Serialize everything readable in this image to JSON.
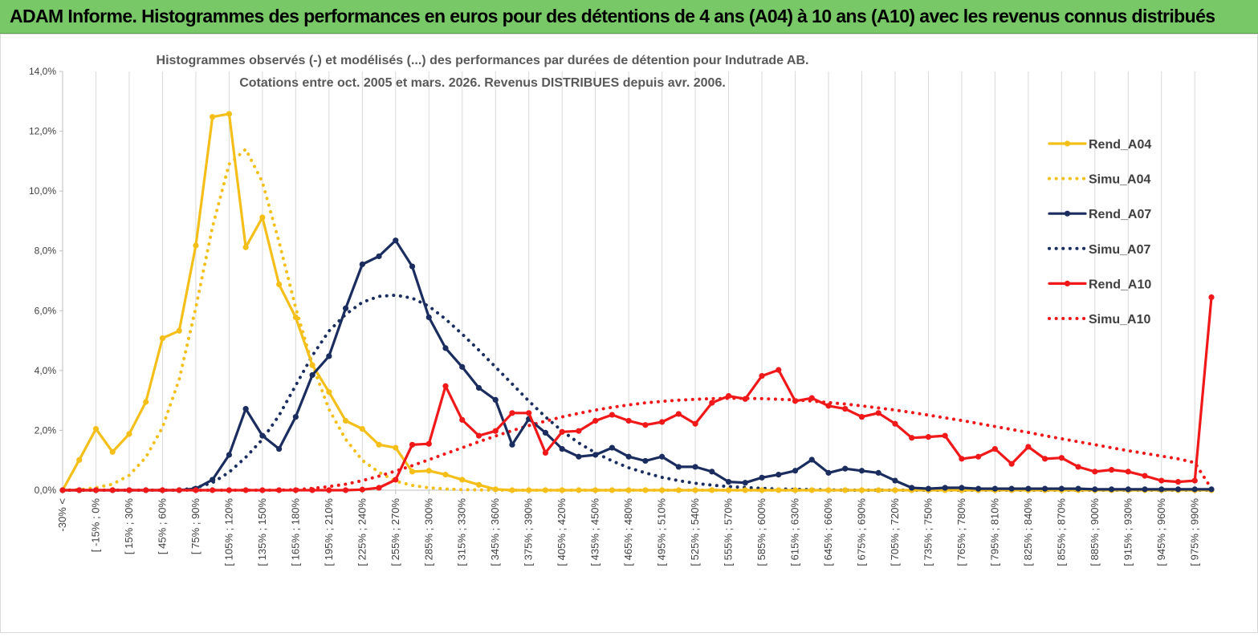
{
  "banner": {
    "title": "ADAM Informe. Histogrammes des performances en euros pour des détentions de 4 ans (A04) à 10 ans (A10) avec les revenus connus distribués",
    "color": "#78c868"
  },
  "chart_data": {
    "type": "line",
    "title_line1": "Histogrammes observés (-) et modélisés (...) des performances par durées de détention pour Indutrade AB.",
    "title_line2": "Cotations entre oct. 2005 et mars. 2026. Revenus DISTRIBUES depuis avr. 2006.",
    "xlabel": "",
    "ylabel": "",
    "ylim": [
      0,
      0.14
    ],
    "y_ticks": [
      0,
      0.02,
      0.04,
      0.06,
      0.08,
      0.1,
      0.12,
      0.14
    ],
    "y_tick_labels": [
      "0,0%",
      "2,0%",
      "4,0%",
      "6,0%",
      "8,0%",
      "10,0%",
      "12,0%",
      "14,0%"
    ],
    "grid": "vertical",
    "legend_position": "right",
    "x_labels": [
      "-30% <",
      "[ -15% ; 0%",
      "[ 15% ; 30%",
      "[ 45% ; 60%",
      "[ 75% ; 90%",
      "[ 105% ; 120%",
      "[ 135% ; 150%",
      "[ 165% ; 180%",
      "[ 195% ; 210%",
      "[ 225% ; 240%",
      "[ 255% ; 270%",
      "[ 285% ; 300%",
      "[ 315% ; 330%",
      "[ 345% ; 360%",
      "[ 375% ; 390%",
      "[ 405% ; 420%",
      "[ 435% ; 450%",
      "[ 465% ; 480%",
      "[ 495% ; 510%",
      "[ 525% ; 540%",
      "[ 555% ; 570%",
      "[ 585% ; 600%",
      "[ 615% ; 630%",
      "[ 645% ; 660%",
      "[ 675% ; 690%",
      "[ 705% ; 720%",
      "[ 735% ; 750%",
      "[ 765% ; 780%",
      "[ 795% ; 810%",
      "[ 825% ; 840%",
      "[ 855% ; 870%",
      "[ 885% ; 900%",
      "[ 915% ; 930%",
      "[ 945% ; 960%",
      "[ 975% ; 990%"
    ],
    "series": [
      {
        "name": "Rend_A04",
        "color": "#f5bf1a",
        "style": "solid",
        "markers": true,
        "values": [
          0,
          0.0101,
          0.0205,
          0.0128,
          0.0188,
          0.0295,
          0.0508,
          0.0533,
          0.0818,
          0.1248,
          0.1258,
          0.0812,
          0.0912,
          0.0688,
          0.0578,
          0.0418,
          0.0328,
          0.0232,
          0.0205,
          0.0152,
          0.0142,
          0.0062,
          0.0065,
          0.0052,
          0.0035,
          0.0018,
          0.0003,
          0,
          0,
          0,
          0,
          0,
          0,
          0,
          0,
          0,
          0,
          0,
          0,
          0,
          0,
          0,
          0,
          0,
          0,
          0,
          0,
          0,
          0,
          0,
          0,
          0,
          0,
          0,
          0,
          0,
          0,
          0,
          0,
          0,
          0,
          0,
          0,
          0,
          0,
          0,
          0,
          0,
          0,
          0
        ]
      },
      {
        "name": "Simu_A04",
        "color": "#f5bf1a",
        "style": "dotted",
        "markers": false,
        "values": [
          0,
          0.0002,
          0.0008,
          0.002,
          0.005,
          0.011,
          0.021,
          0.037,
          0.061,
          0.088,
          0.109,
          0.114,
          0.103,
          0.083,
          0.061,
          0.042,
          0.027,
          0.017,
          0.01,
          0.006,
          0.003,
          0.0016,
          0.0008,
          0.0004,
          0.0002,
          0.0001,
          0,
          0,
          0,
          0,
          0,
          0,
          0,
          0,
          0,
          0,
          0,
          0,
          0,
          0,
          0,
          0,
          0,
          0,
          0,
          0,
          0,
          0,
          0,
          0,
          0,
          0,
          0,
          0,
          0,
          0,
          0,
          0,
          0,
          0,
          0,
          0,
          0,
          0,
          0,
          0,
          0,
          0,
          0,
          0
        ]
      },
      {
        "name": "Rend_A07",
        "color": "#1a2d5e",
        "style": "solid",
        "markers": true,
        "values": [
          0,
          0,
          0,
          0,
          0,
          0,
          0,
          0,
          0.0005,
          0.0035,
          0.0118,
          0.0272,
          0.0182,
          0.0138,
          0.0245,
          0.0385,
          0.0448,
          0.0608,
          0.0755,
          0.0782,
          0.0835,
          0.0748,
          0.0578,
          0.0475,
          0.0412,
          0.0342,
          0.0302,
          0.0152,
          0.0238,
          0.0192,
          0.0138,
          0.0112,
          0.0118,
          0.0142,
          0.0112,
          0.0098,
          0.0112,
          0.0078,
          0.0078,
          0.0062,
          0.0028,
          0.0025,
          0.0042,
          0.0052,
          0.0065,
          0.0102,
          0.0058,
          0.0072,
          0.0065,
          0.0058,
          0.0032,
          0.0008,
          0.0005,
          0.0008,
          0.0008,
          0.0005,
          0.0005,
          0.0005,
          0.0005,
          0.0005,
          0.0005,
          0.0005,
          0.0003,
          0.0003,
          0.0003,
          0.0003,
          0.0003,
          0.0003,
          0.0003,
          0.0003
        ]
      },
      {
        "name": "Simu_A07",
        "color": "#1a2d5e",
        "style": "dotted",
        "markers": false,
        "values": [
          0,
          0,
          0,
          0,
          0,
          0,
          0,
          0,
          0.0008,
          0.0025,
          0.006,
          0.011,
          0.017,
          0.025,
          0.035,
          0.045,
          0.0532,
          0.0588,
          0.0628,
          0.0648,
          0.0652,
          0.0642,
          0.0615,
          0.0572,
          0.0522,
          0.0468,
          0.0412,
          0.0355,
          0.0298,
          0.0245,
          0.0198,
          0.0158,
          0.0125,
          0.0098,
          0.0075,
          0.0058,
          0.0043,
          0.0032,
          0.0023,
          0.0017,
          0.0012,
          0.0009,
          0.0006,
          0.0004,
          0.0003,
          0.0002,
          0.0001,
          0,
          0,
          0,
          0,
          0,
          0,
          0,
          0,
          0,
          0,
          0,
          0,
          0,
          0,
          0,
          0,
          0,
          0,
          0,
          0,
          0,
          0,
          0
        ]
      },
      {
        "name": "Rend_A10",
        "color": "#f01818",
        "style": "solid",
        "markers": true,
        "values": [
          0,
          0,
          0,
          0,
          0,
          0,
          0,
          0,
          0,
          0,
          0,
          0,
          0,
          0,
          0,
          0,
          0,
          0,
          0.0002,
          0.0008,
          0.0035,
          0.0152,
          0.0155,
          0.0348,
          0.0235,
          0.0182,
          0.0198,
          0.0258,
          0.0258,
          0.0125,
          0.0195,
          0.0198,
          0.0232,
          0.0252,
          0.0232,
          0.0218,
          0.0228,
          0.0255,
          0.0222,
          0.0292,
          0.0315,
          0.0305,
          0.0382,
          0.0402,
          0.0298,
          0.0308,
          0.0282,
          0.0272,
          0.0245,
          0.0258,
          0.0222,
          0.0175,
          0.0178,
          0.0182,
          0.0105,
          0.0112,
          0.0138,
          0.0088,
          0.0145,
          0.0105,
          0.0108,
          0.0078,
          0.0062,
          0.0068,
          0.0062,
          0.0048,
          0.0032,
          0.0028,
          0.0032,
          0.0645
        ]
      },
      {
        "name": "Simu_A10",
        "color": "#f01818",
        "style": "dotted",
        "markers": false,
        "values": [
          0,
          0,
          0,
          0,
          0,
          0,
          0,
          0,
          0,
          0,
          0,
          0,
          0,
          0,
          0.0002,
          0.0006,
          0.0012,
          0.002,
          0.0032,
          0.0047,
          0.0064,
          0.0082,
          0.0102,
          0.0122,
          0.0142,
          0.0162,
          0.0181,
          0.0199,
          0.0216,
          0.0231,
          0.0245,
          0.0257,
          0.0268,
          0.0277,
          0.0285,
          0.0292,
          0.0297,
          0.0301,
          0.0304,
          0.0306,
          0.0307,
          0.0307,
          0.0306,
          0.0304,
          0.0302,
          0.0298,
          0.0293,
          0.0288,
          0.0282,
          0.0275,
          0.0268,
          0.026,
          0.0251,
          0.0242,
          0.0233,
          0.0223,
          0.0213,
          0.0203,
          0.0193,
          0.0182,
          0.0172,
          0.0162,
          0.0152,
          0.0142,
          0.0132,
          0.0123,
          0.0114,
          0.0105,
          0.0092,
          0.0005
        ]
      }
    ]
  }
}
